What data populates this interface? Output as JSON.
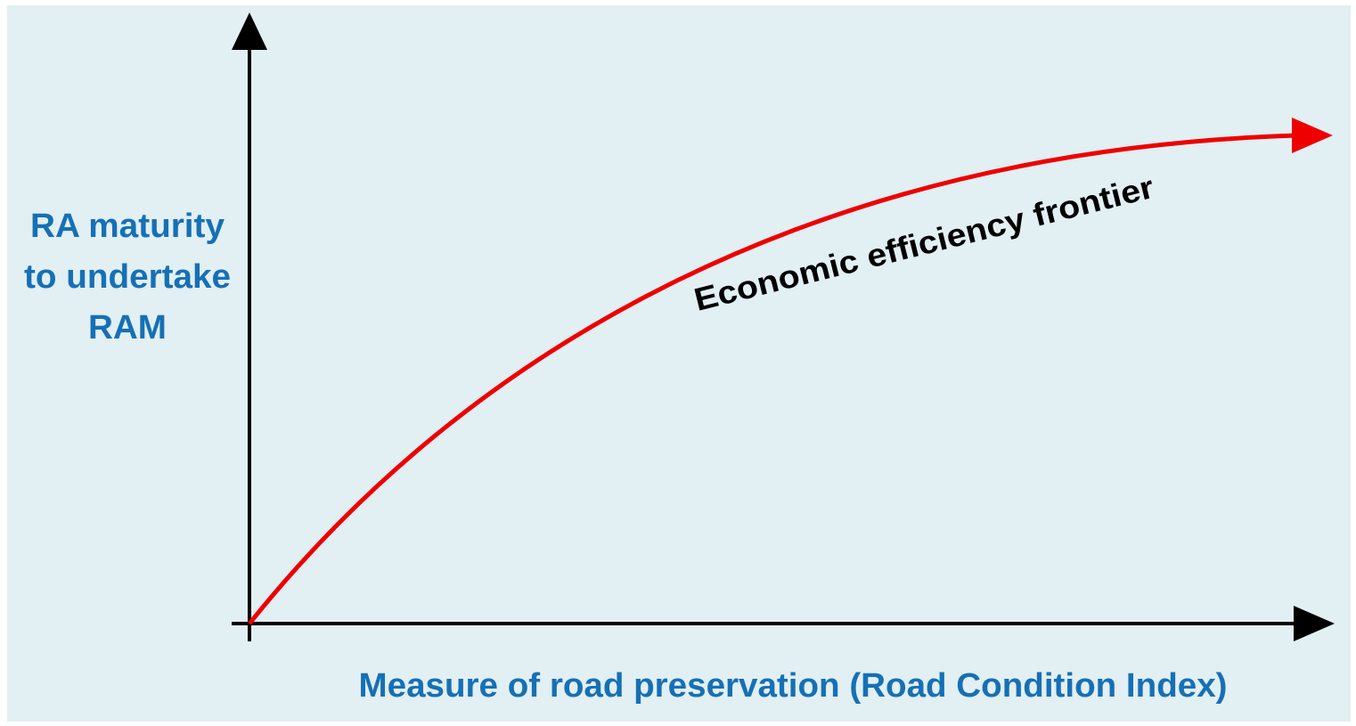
{
  "y_axis_label": [
    "RA maturity",
    "to undertake",
    "RAM"
  ],
  "x_axis_label": "Measure of road preservation (Road Condition Index)",
  "curve_label": "Economic efficiency frontier"
}
